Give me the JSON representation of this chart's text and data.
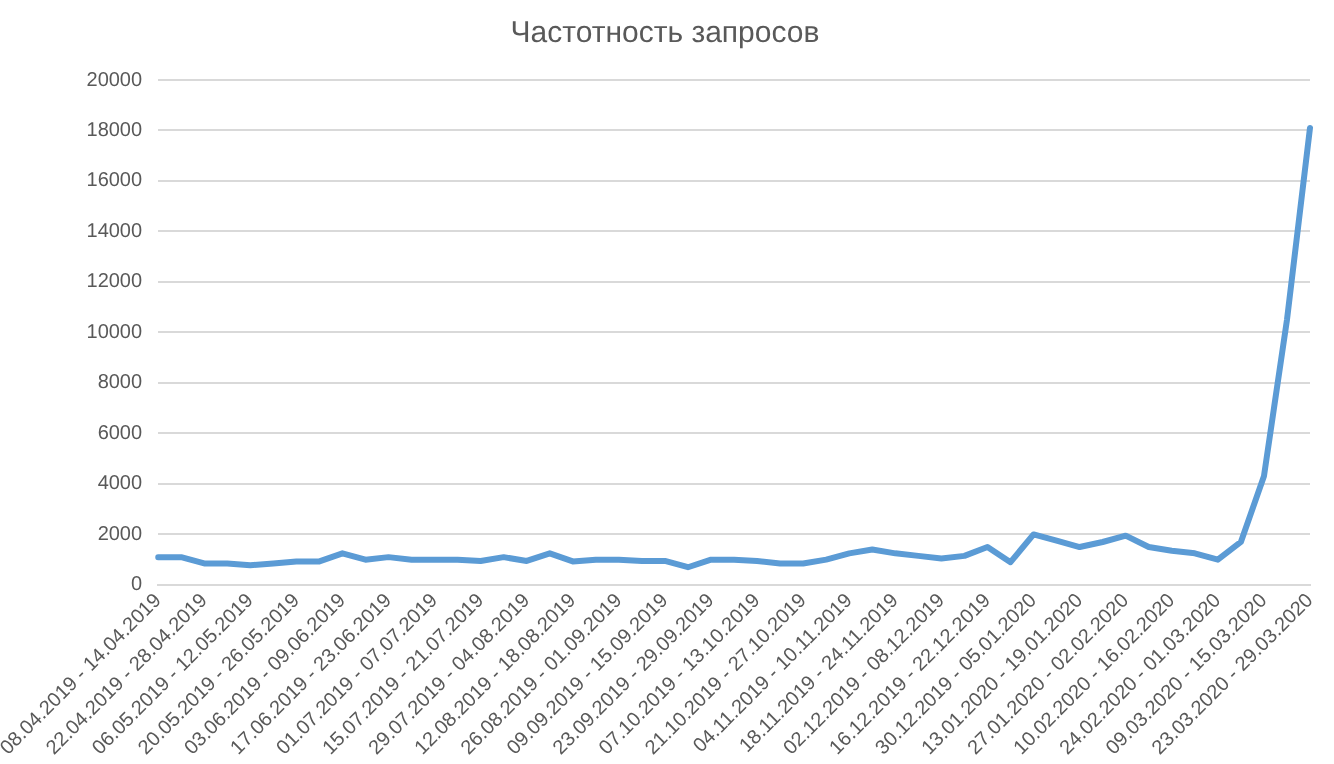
{
  "chart_data": {
    "type": "line",
    "title": "Частотность запросов",
    "categories": [
      "08.04.2019 - 14.04.2019",
      null,
      "22.04.2019 - 28.04.2019",
      null,
      "06.05.2019 - 12.05.2019",
      null,
      "20.05.2019 - 26.05.2019",
      null,
      "03.06.2019 - 09.06.2019",
      null,
      "17.06.2019 - 23.06.2019",
      null,
      "01.07.2019 - 07.07.2019",
      null,
      "15.07.2019 - 21.07.2019",
      null,
      "29.07.2019 - 04.08.2019",
      null,
      "12.08.2019 - 18.08.2019",
      null,
      "26.08.2019 - 01.09.2019",
      null,
      "09.09.2019 - 15.09.2019",
      null,
      "23.09.2019 - 29.09.2019",
      null,
      "07.10.2019 - 13.10.2019",
      null,
      "21.10.2019 - 27.10.2019",
      null,
      "04.11.2019 - 10.11.2019",
      null,
      "18.11.2019 - 24.11.2019",
      null,
      "02.12.2019 - 08.12.2019",
      null,
      "16.12.2019 - 22.12.2019",
      null,
      "30.12.2019 - 05.01.2020",
      null,
      "13.01.2020 - 19.01.2020",
      null,
      "27.01.2020 - 02.02.2020",
      null,
      "10.02.2020 - 16.02.2020",
      null,
      "24.02.2020 - 01.03.2020",
      null,
      "09.03.2020 - 15.03.2020",
      null,
      "23.03.2020 - 29.03.2020"
    ],
    "series": [
      {
        "color": "#5b9bd5",
        "values": [
          1100,
          1100,
          850,
          850,
          780,
          850,
          930,
          930,
          1250,
          1000,
          1100,
          1000,
          1000,
          1000,
          950,
          1100,
          950,
          1250,
          930,
          1000,
          1000,
          950,
          950,
          700,
          1000,
          1000,
          950,
          850,
          850,
          1000,
          1250,
          1400,
          1250,
          1150,
          1050,
          1150,
          1500,
          900,
          2000,
          1750,
          1500,
          1700,
          1950,
          1500,
          1350,
          1250,
          1000,
          1700,
          4300,
          10500,
          18100
        ]
      }
    ],
    "ylim": [
      0,
      20000
    ],
    "yticks": [
      0,
      2000,
      4000,
      6000,
      8000,
      10000,
      12000,
      14000,
      16000,
      18000,
      20000
    ],
    "grid": "y",
    "legend": false,
    "marker": "none",
    "line_style": "solid"
  }
}
